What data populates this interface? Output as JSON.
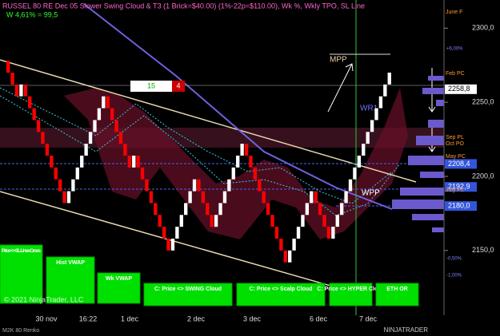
{
  "chart_data": {
    "type": "renko",
    "title": "RUSSEL 80 RE Dec 05 Slower Swing Cloud & T3 (1 Brick=$40.00) (1%-22p=$110.00), Wk %, Wkly TPO, SL Line",
    "subtitle": "W 4,61% = 99,5",
    "instrument": "M2K 80 Renko",
    "copyright": "© 2021 NinjaTrader, LLC",
    "logo": "NINJATRADER",
    "open": 2278,
    "values": [
      2270,
      2262,
      2254,
      2262,
      2254,
      2246,
      2238,
      2230,
      2222,
      2214,
      2206,
      2198,
      2190,
      2182,
      2190,
      2198,
      2206,
      2214,
      2222,
      2230,
      2238,
      2246,
      2254,
      2246,
      2238,
      2230,
      2222,
      2214,
      2206,
      2214,
      2206,
      2198,
      2190,
      2182,
      2174,
      2166,
      2158,
      2150,
      2158,
      2166,
      2174,
      2182,
      2190,
      2198,
      2190,
      2182,
      2174,
      2166,
      2174,
      2182,
      2190,
      2198,
      2206,
      2214,
      2222,
      2214,
      2206,
      2198,
      2190,
      2182,
      2174,
      2166,
      2158,
      2150,
      2142,
      2150,
      2158,
      2166,
      2174,
      2182,
      2190,
      2182,
      2174,
      2166,
      2158,
      2166,
      2174,
      2182,
      2190,
      2198,
      2206,
      2214,
      2222,
      2230,
      2238,
      2246,
      2254,
      2262,
      2270
    ],
    "up_color": "#ffffff",
    "down_color": "#ff0000",
    "ylim": [
      2109,
      2319
    ],
    "yticks": [
      {
        "value": 2300,
        "label": "2300,0"
      },
      {
        "value": 2250,
        "label": "2250,0"
      },
      {
        "value": 2200,
        "label": "2200,0"
      },
      {
        "value": 2150,
        "label": "2150,0"
      }
    ],
    "x_labels": [
      "30 nov",
      "16:22",
      "1 dec",
      "2 dec",
      "3 dec",
      "6 dec",
      "7 dec"
    ],
    "price_markers": [
      {
        "value": 2258.8,
        "label": "2258,8",
        "color": "#ffffff"
      },
      {
        "value": 2208.4,
        "label": "2208,4",
        "color": "#3355dd"
      },
      {
        "value": 2192.9,
        "label": "2192,9",
        "color": "#3355dd"
      },
      {
        "value": 2180.0,
        "label": "2180,0",
        "color": "#3355dd"
      }
    ],
    "percent_labels": [
      "+6,00%",
      "-0,50%",
      "-1,00%"
    ],
    "level_labels": [
      "June F",
      "Feb PC",
      "Sep PL",
      "Oct PO",
      "May PC",
      "July PL"
    ],
    "annotations": [
      "MPP",
      "WR1",
      "WPP"
    ],
    "brick_counter": {
      "count": "15",
      "remaining": "4"
    },
    "buttons": [
      "Price <> SL Lines Cross",
      "Hist VWAP",
      "Wk VWAP",
      "C: Price <> SWING Cloud",
      "C: Price <> Scalp Cloud",
      "C: Price <> HYPER Cloud",
      "ETH OR"
    ]
  }
}
